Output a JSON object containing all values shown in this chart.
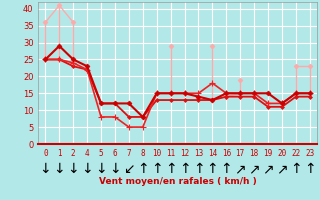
{
  "bg_color": "#b3e8e8",
  "grid_color": "#c8f0f0",
  "xlabel": "Vent moyen/en rafales ( km/h )",
  "ylim": [
    0,
    42
  ],
  "yticks": [
    0,
    5,
    10,
    15,
    20,
    25,
    30,
    35,
    40
  ],
  "x_labels": [
    "0",
    "1",
    "2",
    "4",
    "5",
    "6",
    "7",
    "8",
    "10",
    "11",
    "12",
    "13",
    "14",
    "16",
    "17",
    "18",
    "19",
    "20",
    "22",
    "23"
  ],
  "wind_arrows": [
    "↓",
    "↓",
    "↓",
    "↓",
    "↓",
    "↓",
    "↙",
    "↑",
    "↑",
    "↑",
    "↑",
    "↑",
    "↑",
    "↑",
    "↗",
    "↗",
    "↗",
    "↗",
    "↑",
    "↑"
  ],
  "light_top_y": [
    36,
    41,
    36,
    null,
    null,
    null,
    null,
    null,
    null,
    29,
    null,
    null,
    29,
    null,
    19,
    null,
    null,
    null,
    23,
    23
  ],
  "light_bot_y": [
    25,
    25,
    24,
    null,
    null,
    null,
    null,
    null,
    15,
    15,
    15,
    14,
    13,
    14,
    15,
    15,
    12,
    12,
    15,
    15
  ],
  "light_color": "#ffaaaa",
  "light_lw": 1.0,
  "light_marker": "D",
  "light_ms": 2.5,
  "series1_y": [
    25,
    29,
    25,
    23,
    12,
    12,
    12,
    8,
    15,
    15,
    15,
    14,
    13,
    15,
    15,
    15,
    15,
    12,
    15,
    15
  ],
  "series1_color": "#cc0000",
  "series1_marker": "D",
  "series1_ms": 2.5,
  "series1_lw": 1.5,
  "series2_y": [
    25,
    25,
    24,
    22,
    8,
    8,
    5,
    5,
    15,
    15,
    15,
    15,
    18,
    15,
    15,
    15,
    12,
    12,
    15,
    15
  ],
  "series2_color": "#ee2222",
  "series2_marker": "+",
  "series2_ms": 4,
  "series2_lw": 1.2,
  "series3_y": [
    25,
    25,
    23,
    22,
    12,
    12,
    8,
    8,
    13,
    13,
    13,
    13,
    13,
    14,
    14,
    14,
    11,
    11,
    14,
    14
  ],
  "series3_color": "#dd1111",
  "series3_marker": "D",
  "series3_ms": 2.0,
  "series3_lw": 1.3
}
